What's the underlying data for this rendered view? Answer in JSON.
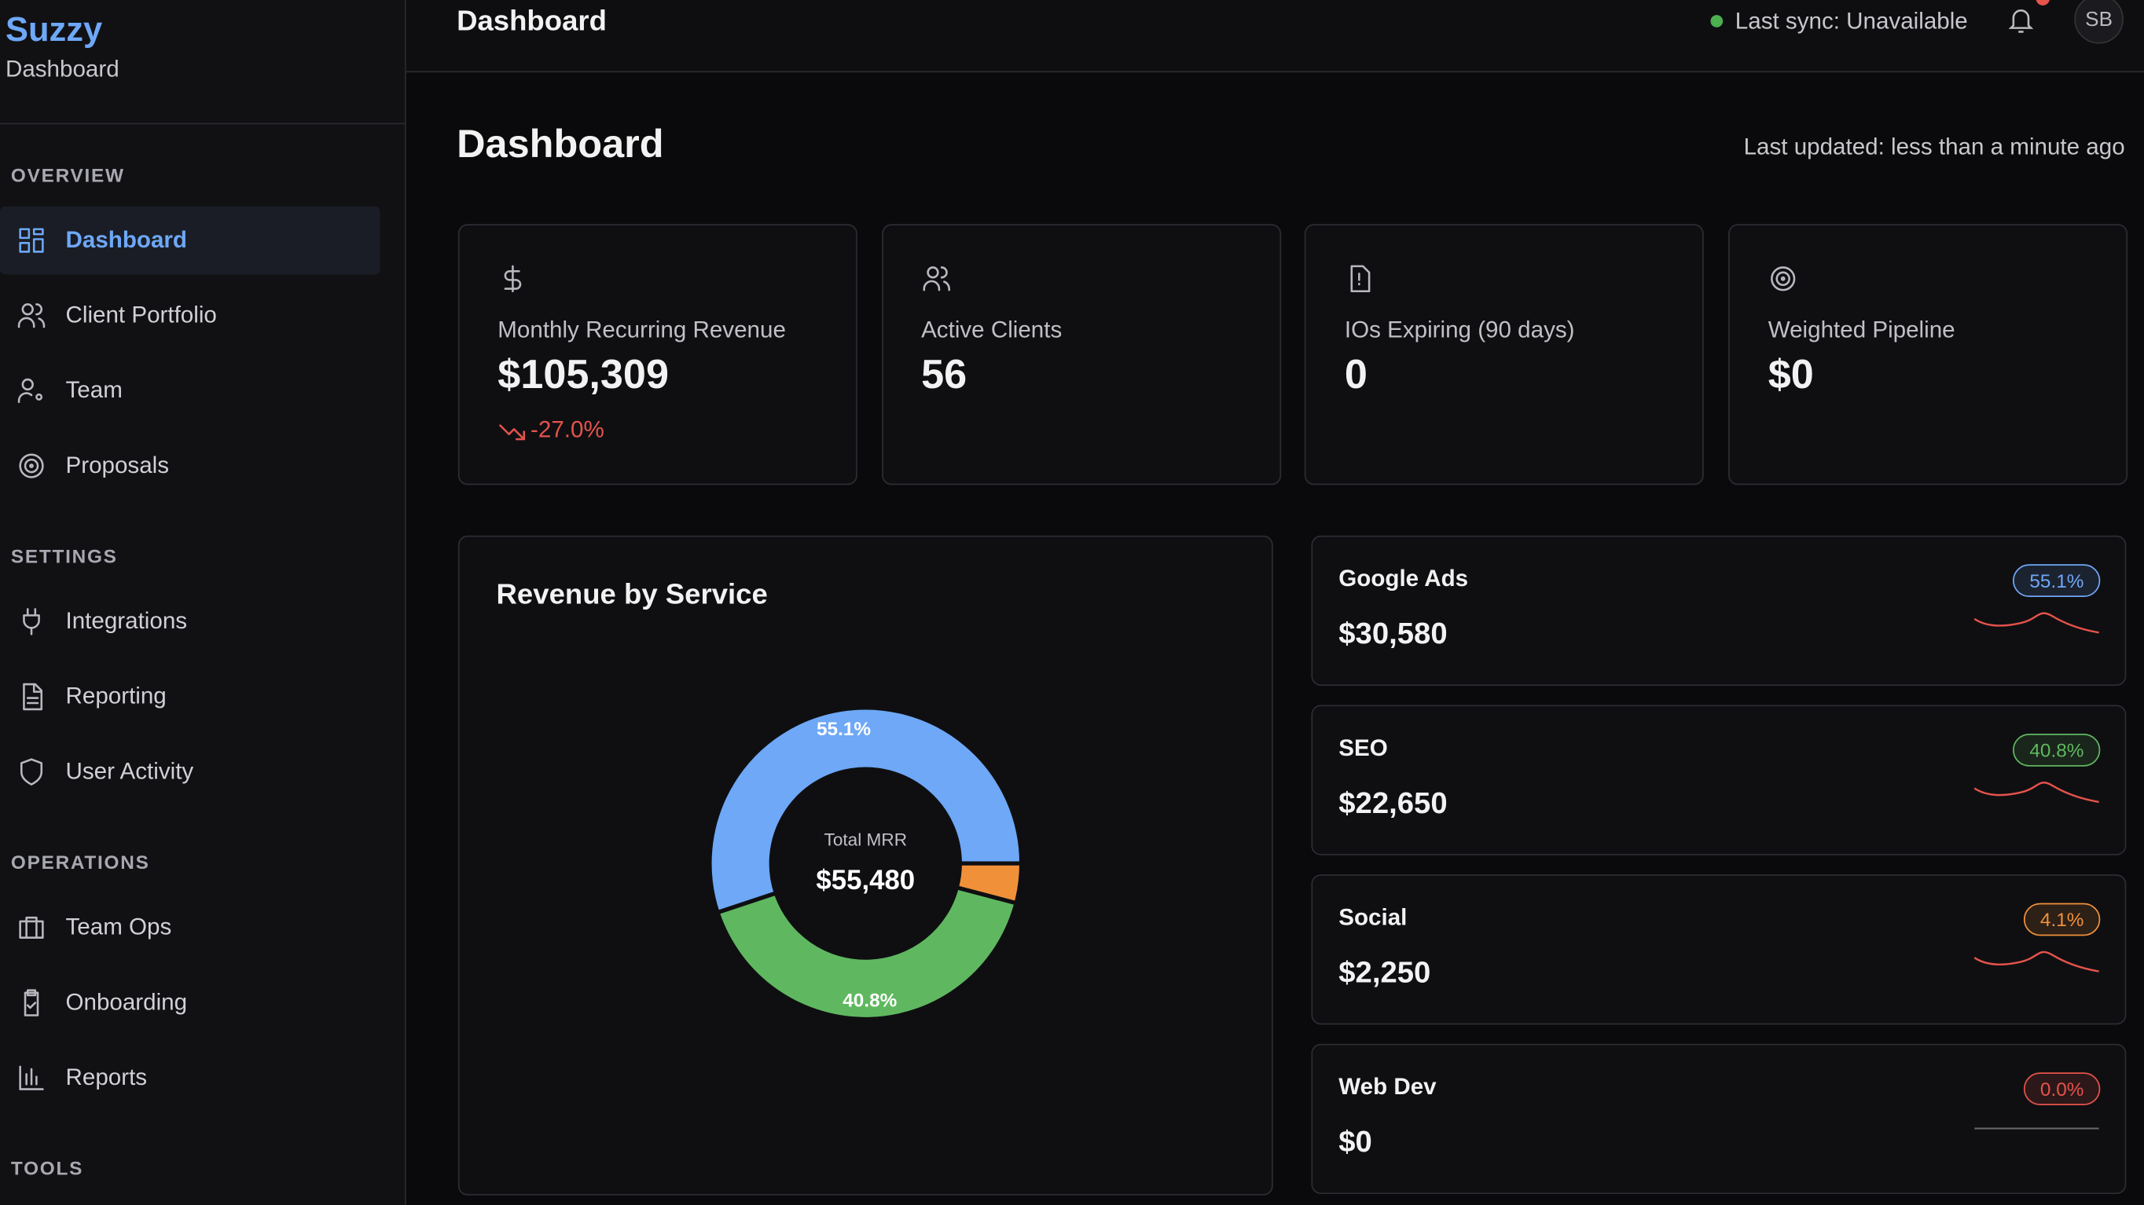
{
  "sidebar": {
    "brand": "Suzzy",
    "subtitle": "Dashboard",
    "sections": [
      {
        "title": "OVERVIEW",
        "items": [
          "Dashboard",
          "Client Portfolio",
          "Team",
          "Proposals"
        ]
      },
      {
        "title": "SETTINGS",
        "items": [
          "Integrations",
          "Reporting",
          "User Activity"
        ]
      },
      {
        "title": "OPERATIONS",
        "items": [
          "Team Ops",
          "Onboarding",
          "Reports"
        ]
      },
      {
        "title": "TOOLS"
      }
    ]
  },
  "header": {
    "title": "Dashboard",
    "sync": "Last sync: Unavailable",
    "avatar": "SB"
  },
  "page": {
    "title": "Dashboard",
    "updated": "Last updated: less than a minute ago"
  },
  "kpis": [
    {
      "label": "Monthly Recurring Revenue",
      "value": "$105,309",
      "change": "-27.0%"
    },
    {
      "label": "Active Clients",
      "value": "56"
    },
    {
      "label": "IOs Expiring (90 days)",
      "value": "0"
    },
    {
      "label": "Weighted Pipeline",
      "value": "$0"
    }
  ],
  "revenue_by_service": {
    "title": "Revenue by Service",
    "center_label": "Total MRR",
    "center_value": "$55,480",
    "services": [
      {
        "name": "Google Ads",
        "value": "$30,580",
        "share": 55.1,
        "share_label": "55.1%",
        "color": "#6ea8f7"
      },
      {
        "name": "SEO",
        "value": "$22,650",
        "share": 40.8,
        "share_label": "40.8%",
        "color": "#5fb85f"
      },
      {
        "name": "Social",
        "value": "$2,250",
        "share": 4.1,
        "share_label": "4.1%",
        "color": "#f0913a"
      },
      {
        "name": "Web Dev",
        "value": "$0",
        "share": 0.0,
        "share_label": "0.0%",
        "color": "#e5534b"
      }
    ]
  }
}
